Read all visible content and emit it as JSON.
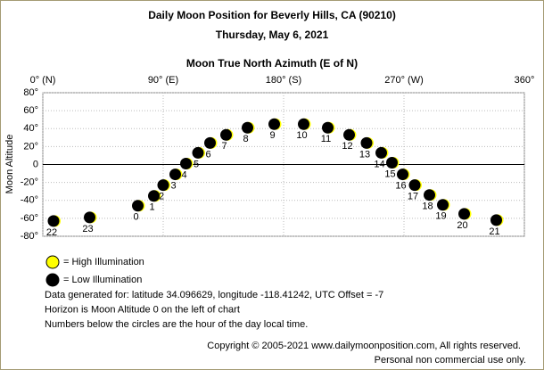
{
  "chart_data": {
    "type": "scatter",
    "title": "Daily Moon Position for Beverly Hills, CA (90210)",
    "subtitle": "Thursday, May 6, 2021",
    "x_label": "Moon True North Azimuth (E of N)",
    "y_label": "Moon Altitude",
    "xlim": [
      0,
      360
    ],
    "xticks": [
      {
        "value": 0,
        "label": "0° (N)"
      },
      {
        "value": 90,
        "label": "90° (E)"
      },
      {
        "value": 180,
        "label": "180° (S)"
      },
      {
        "value": 270,
        "label": "270° (W)"
      },
      {
        "value": 360,
        "label": "360°"
      }
    ],
    "ylim": [
      -80,
      80
    ],
    "yticks": [
      {
        "value": 80,
        "label": "80°"
      },
      {
        "value": 60,
        "label": "60°"
      },
      {
        "value": 40,
        "label": "40°"
      },
      {
        "value": 20,
        "label": "20°"
      },
      0,
      {
        "value": -20,
        "label": "-20°"
      },
      {
        "value": -40,
        "label": "-40°"
      },
      {
        "value": -60,
        "label": "-60°"
      },
      {
        "value": -80,
        "label": "-80°"
      }
    ],
    "grid": true,
    "series": [
      {
        "name": "Low Illumination",
        "color": "#000000",
        "labels": [
          "0",
          "1",
          "2",
          "3",
          "4",
          "5",
          "6",
          "7",
          "8",
          "9",
          "10",
          "11",
          "12",
          "13",
          "14",
          "15",
          "16",
          "17",
          "18",
          "19",
          "20",
          "21",
          "22",
          "23"
        ],
        "x": [
          71,
          83,
          90,
          99,
          107,
          116,
          125,
          137,
          153,
          173,
          195,
          213,
          229,
          242,
          253,
          261,
          269,
          278,
          289,
          299,
          315,
          339,
          8,
          35
        ],
        "values": [
          -46,
          -35,
          -23,
          -11,
          1,
          13,
          24,
          33,
          41,
          45,
          45,
          41,
          33,
          24,
          13,
          2,
          -11,
          -23,
          -34,
          -45,
          -55,
          -62,
          -63,
          -59
        ]
      }
    ],
    "legend": [
      {
        "name": "= High Illumination",
        "color": "#ffff00"
      },
      {
        "name": "= Low Illumination",
        "color": "#000000"
      }
    ],
    "notes": [
      "Data generated for: latitude 34.096629, longitude -118.41242, UTC Offset = -7",
      "Horizon is Moon Altitude 0 on the left of chart",
      "Numbers below the circles are the hour of the day local time."
    ],
    "copyright": [
      "Copyright © 2005-2021 www.dailymoonposition.com, All rights reserved.",
      "Personal non commercial use only."
    ]
  }
}
